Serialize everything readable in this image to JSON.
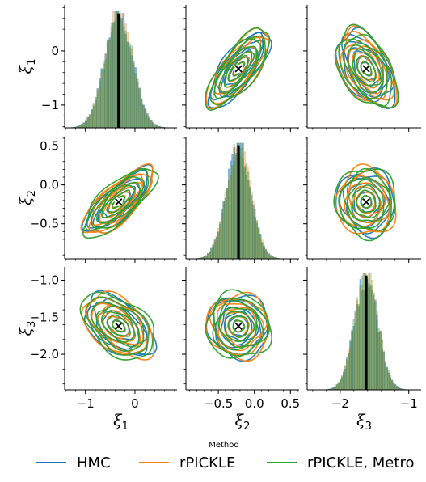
{
  "chart_data": {
    "type": "pairplot",
    "variables": [
      {
        "symbol": "ξ",
        "index": "1",
        "ticks": [
          -1,
          0
        ],
        "range": [
          -1.42,
          0.85
        ],
        "mean": -0.33,
        "sd": 0.28
      },
      {
        "symbol": "ξ",
        "index": "2",
        "ticks": [
          -0.5,
          0.0,
          0.5
        ],
        "range": [
          -0.95,
          0.62
        ],
        "mean": -0.22,
        "sd": 0.17
      },
      {
        "symbol": "ξ",
        "index": "3",
        "ticks": [
          -2,
          -1
        ],
        "range": [
          -2.48,
          -0.82
        ],
        "mean": -1.62,
        "sd": 0.17
      }
    ],
    "ytick_labels": [
      [
        "0",
        "−1"
      ],
      [
        "0.5",
        "0.0",
        "−0.5"
      ],
      [
        "−1.0",
        "−1.5",
        "−2.0"
      ]
    ],
    "xtick_labels": [
      [
        "−1",
        "0"
      ],
      [
        "−0.5",
        "0.0",
        "0.5"
      ],
      [
        "−2",
        "−1"
      ]
    ],
    "correlations": {
      "1-2": 0.75,
      "1-3": -0.45,
      "2-3": -0.05
    },
    "legend": {
      "title": "Method",
      "placement": "bottom-center",
      "entries": [
        {
          "name": "HMC",
          "color": "#1f77b4"
        },
        {
          "name": "rPICKLE",
          "color": "#ff7f0e"
        },
        {
          "name": "rPICKLE, Metro",
          "color": "#2ca02c"
        }
      ]
    }
  }
}
